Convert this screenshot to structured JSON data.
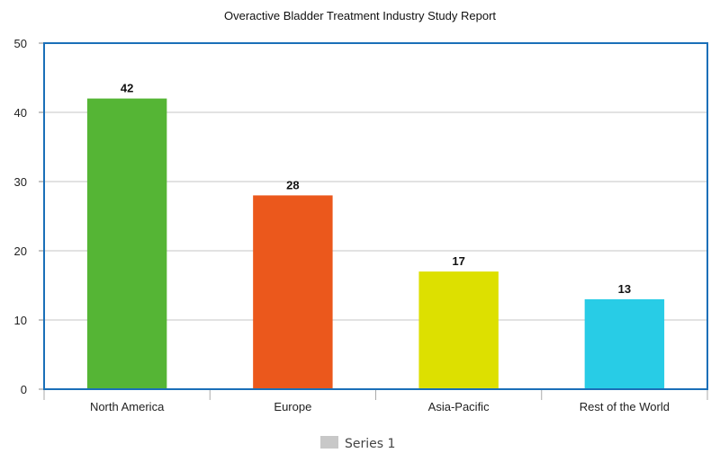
{
  "chart_data": {
    "type": "bar",
    "title": "Overactive Bladder Treatment Industry Study Report",
    "categories": [
      "North America",
      "Europe",
      "Asia-Pacific",
      "Rest of the World"
    ],
    "series": [
      {
        "name": "Series 1",
        "values": [
          42,
          28,
          17,
          13
        ],
        "data_labels": [
          "42",
          "28",
          "17",
          "13"
        ]
      }
    ],
    "bar_colors": [
      "#55b535",
      "#eb581c",
      "#dde000",
      "#28cce6"
    ],
    "ylim": [
      0,
      50
    ],
    "yticks": [
      0,
      10,
      20,
      30,
      40,
      50
    ],
    "grid": true,
    "legend": "bottom-center",
    "legend_swatch_color": "#c8c8c8",
    "frame_color": "#1a6fb8"
  }
}
